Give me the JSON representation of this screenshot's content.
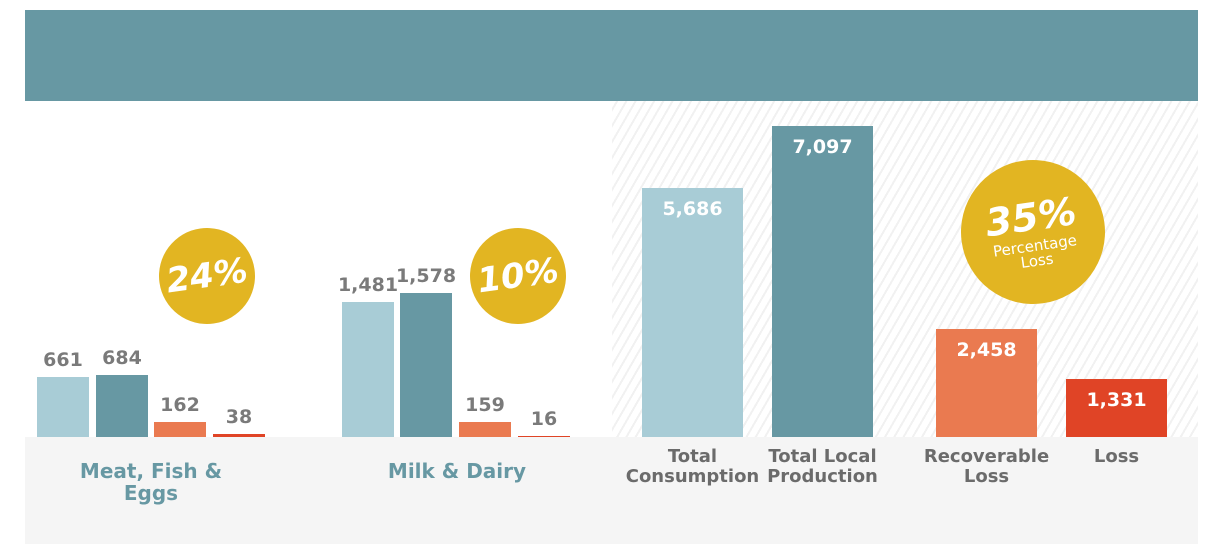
{
  "chart_data": [
    {
      "type": "bar",
      "title": "Meat, Fish & Eggs",
      "values": [
        661,
        684,
        162,
        38
      ],
      "colors": [
        "#a8ccd6",
        "#6798a3",
        "#ea7a50",
        "#e04426"
      ],
      "annotation": "24%"
    },
    {
      "type": "bar",
      "title": "Milk & Dairy",
      "values": [
        1481,
        1578,
        159,
        16
      ],
      "value_labels": [
        "1,481",
        "1,578",
        "159",
        "16"
      ],
      "colors": [
        "#a8ccd6",
        "#6798a3",
        "#ea7a50",
        "#e04426"
      ],
      "annotation": "10%"
    },
    {
      "type": "bar",
      "categories": [
        "Total Consumption",
        "Total Local Production",
        "Recoverable Loss",
        "Loss"
      ],
      "values": [
        5686,
        7097,
        2458,
        1331
      ],
      "value_labels": [
        "5,686",
        "7,097",
        "2,458",
        "1,331"
      ],
      "colors": [
        "#a8ccd6",
        "#6798a3",
        "#ea7a50",
        "#e04426"
      ],
      "annotation": "35%",
      "annotation_subtitle": "Percentage Loss"
    }
  ]
}
